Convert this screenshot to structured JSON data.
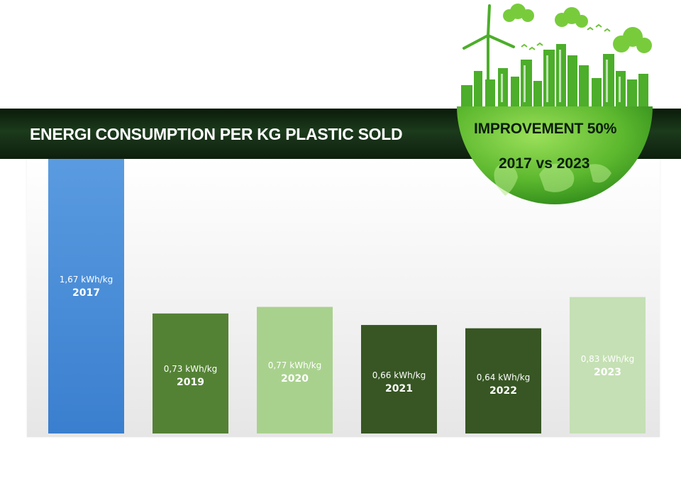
{
  "chart_data": {
    "type": "bar",
    "title": "ENERGI CONSUMPTION PER KG PLASTIC SOLD",
    "categories": [
      "2017",
      "2019",
      "2020",
      "2021",
      "2022",
      "2023"
    ],
    "values": [
      1.67,
      0.73,
      0.77,
      0.66,
      0.64,
      0.83
    ],
    "value_labels": [
      "1,67 kWh/kg",
      "0,73 kWh/kg",
      "0,77 kWh/kg",
      "0,66 kWh/kg",
      "0,64 kWh/kg",
      "0,83 kWh/kg"
    ],
    "bar_colors": [
      "#4a8fd6",
      "#548235",
      "#a9d18e",
      "#375623",
      "#375623",
      "#c5e0b4"
    ],
    "ylim": [
      0,
      1.67
    ],
    "grid": false,
    "legend": "none"
  },
  "badge": {
    "line1": "IMPROVEMENT 50%",
    "line2": "2017 vs 2023",
    "globe_color": "#5cb82e",
    "city_color": "#4cae2a"
  }
}
